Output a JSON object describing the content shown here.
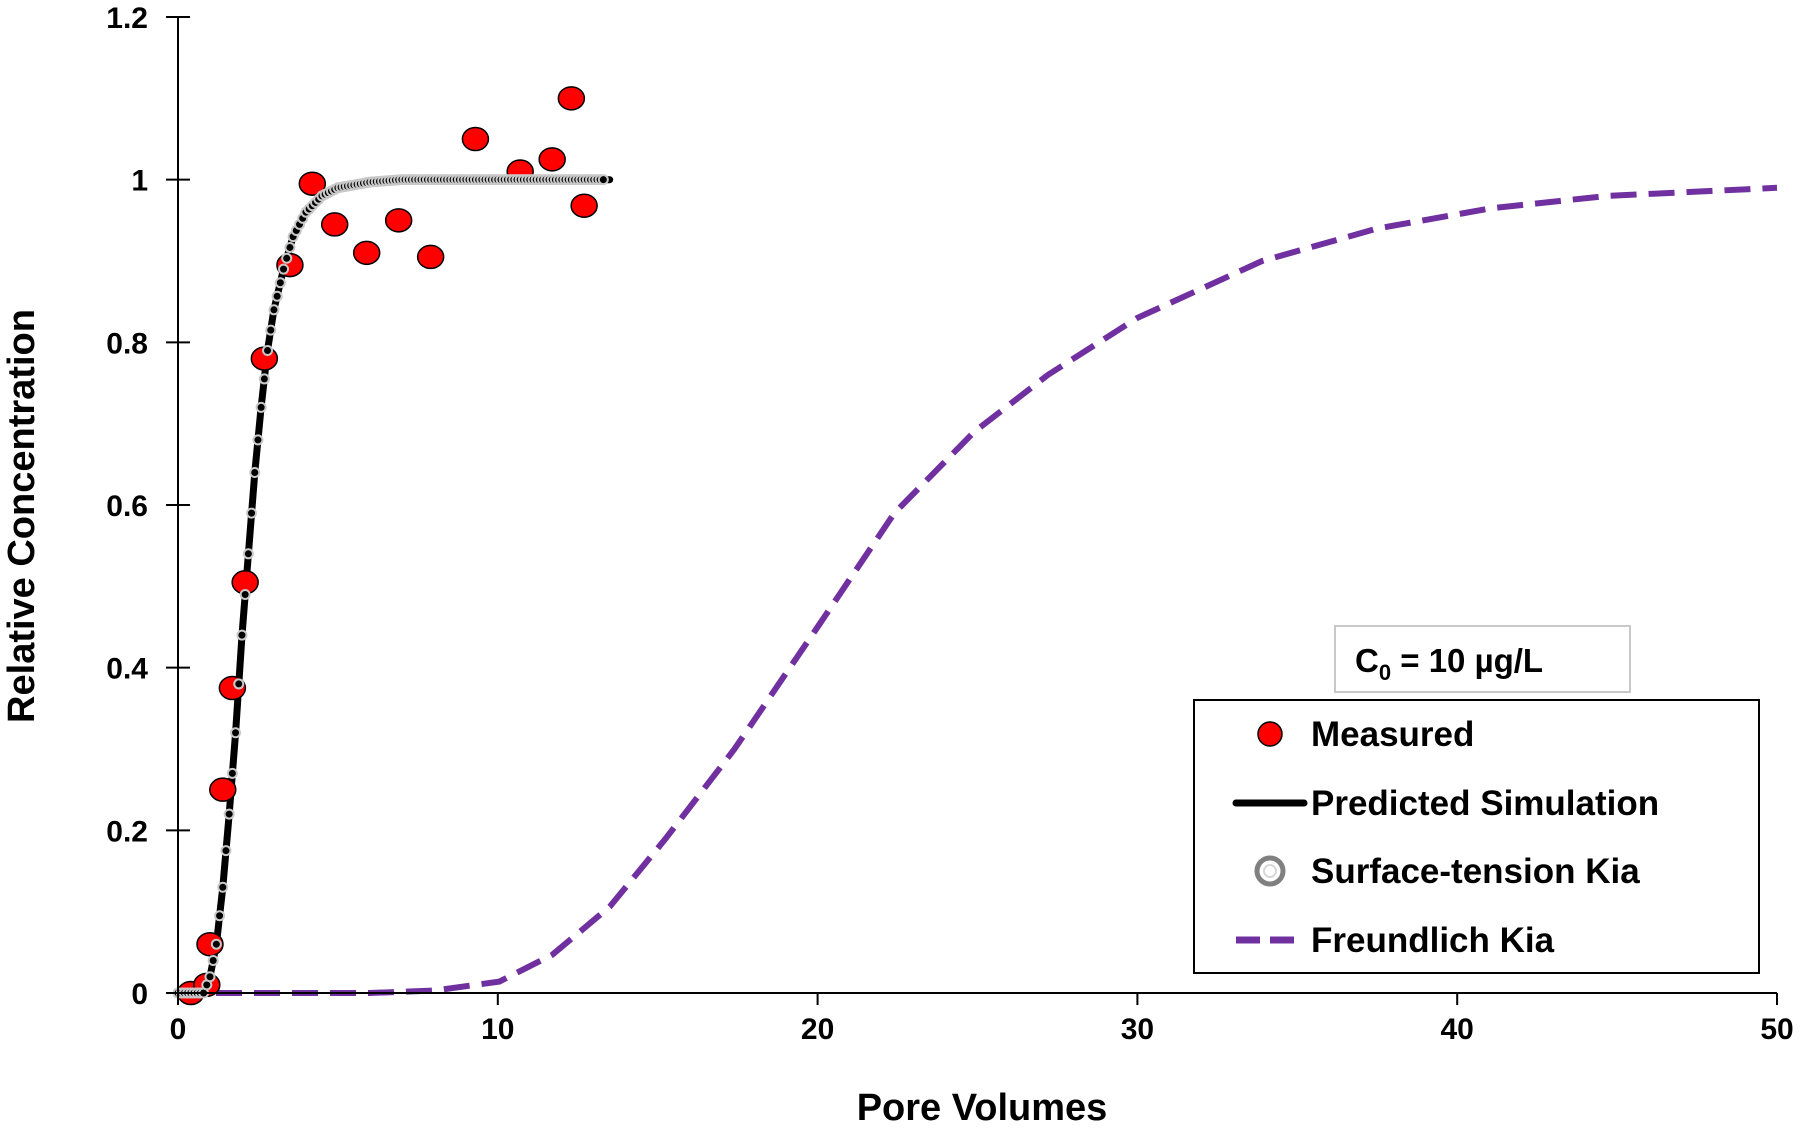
{
  "chart_data": {
    "type": "scatter",
    "title": "",
    "xlabel": "Pore Volumes",
    "ylabel": "Relative Concentration",
    "xlim": [
      0,
      50
    ],
    "ylim": [
      0,
      1.2
    ],
    "xticks": [
      0,
      10,
      20,
      30,
      40,
      50
    ],
    "yticks": [
      0,
      0.2,
      0.4,
      0.6,
      0.8,
      1,
      1.2
    ],
    "xtick_labels": [
      "0",
      "10",
      "20",
      "30",
      "40",
      "50"
    ],
    "ytick_labels": [
      "0",
      "0.2",
      "0.4",
      "0.6",
      "0.8",
      "1",
      "1.2"
    ],
    "grid": false,
    "legend_placement": "bottom-right",
    "annotation": {
      "prefix": "C",
      "subscript": "0",
      "text": " = 10 µg/L"
    },
    "series": [
      {
        "name": "Measured",
        "kind": "markers",
        "color": "#ff0000",
        "x": [
          0.4,
          0.9,
          1.0,
          1.4,
          1.7,
          2.1,
          2.7,
          3.5,
          4.2,
          4.9,
          5.9,
          6.9,
          7.9,
          9.3,
          10.7,
          11.7,
          12.3,
          12.7
        ],
        "y": [
          0.0,
          0.01,
          0.06,
          0.25,
          0.375,
          0.505,
          0.78,
          0.895,
          0.995,
          0.945,
          0.91,
          0.95,
          0.905,
          1.05,
          1.01,
          1.025,
          1.1,
          0.968
        ]
      },
      {
        "name": "Predicted Simulation",
        "kind": "line",
        "color": "#000000",
        "x": [
          0,
          0.8,
          1.0,
          1.2,
          1.4,
          1.6,
          1.8,
          2.0,
          2.2,
          2.4,
          2.6,
          2.8,
          3.0,
          3.3,
          3.6,
          4.0,
          4.5,
          5.0,
          6.0,
          7.0,
          13.5
        ],
        "y": [
          0,
          0,
          0.02,
          0.06,
          0.13,
          0.22,
          0.32,
          0.44,
          0.54,
          0.64,
          0.72,
          0.79,
          0.84,
          0.89,
          0.93,
          0.96,
          0.98,
          0.99,
          0.997,
          1.0,
          1.0
        ]
      },
      {
        "name": "Surface-tension Kia",
        "kind": "open-markers",
        "color": "#c8c8c8",
        "x": [
          0,
          0.8,
          1.0,
          1.2,
          1.4,
          1.6,
          1.8,
          2.0,
          2.2,
          2.4,
          2.6,
          2.8,
          3.0,
          3.3,
          3.6,
          4.0,
          4.5,
          5.0,
          6.0,
          7.0,
          13.3
        ],
        "y": [
          0,
          0,
          0.02,
          0.06,
          0.13,
          0.22,
          0.32,
          0.44,
          0.54,
          0.64,
          0.72,
          0.79,
          0.84,
          0.89,
          0.93,
          0.96,
          0.98,
          0.99,
          0.997,
          1.0,
          1.0
        ]
      },
      {
        "name": "Freundlich Kia",
        "kind": "dashed-line",
        "color": "#7030a0",
        "x": [
          0,
          6,
          8,
          10.05,
          11.7,
          13.5,
          15.25,
          17.4,
          20,
          22.4,
          24.9,
          27.2,
          30,
          33.9,
          37.5,
          41.1,
          44.7,
          50
        ],
        "y": [
          0,
          0,
          0.003,
          0.014,
          0.047,
          0.106,
          0.19,
          0.3,
          0.45,
          0.59,
          0.69,
          0.76,
          0.83,
          0.9,
          0.94,
          0.965,
          0.98,
          0.99
        ]
      }
    ]
  }
}
